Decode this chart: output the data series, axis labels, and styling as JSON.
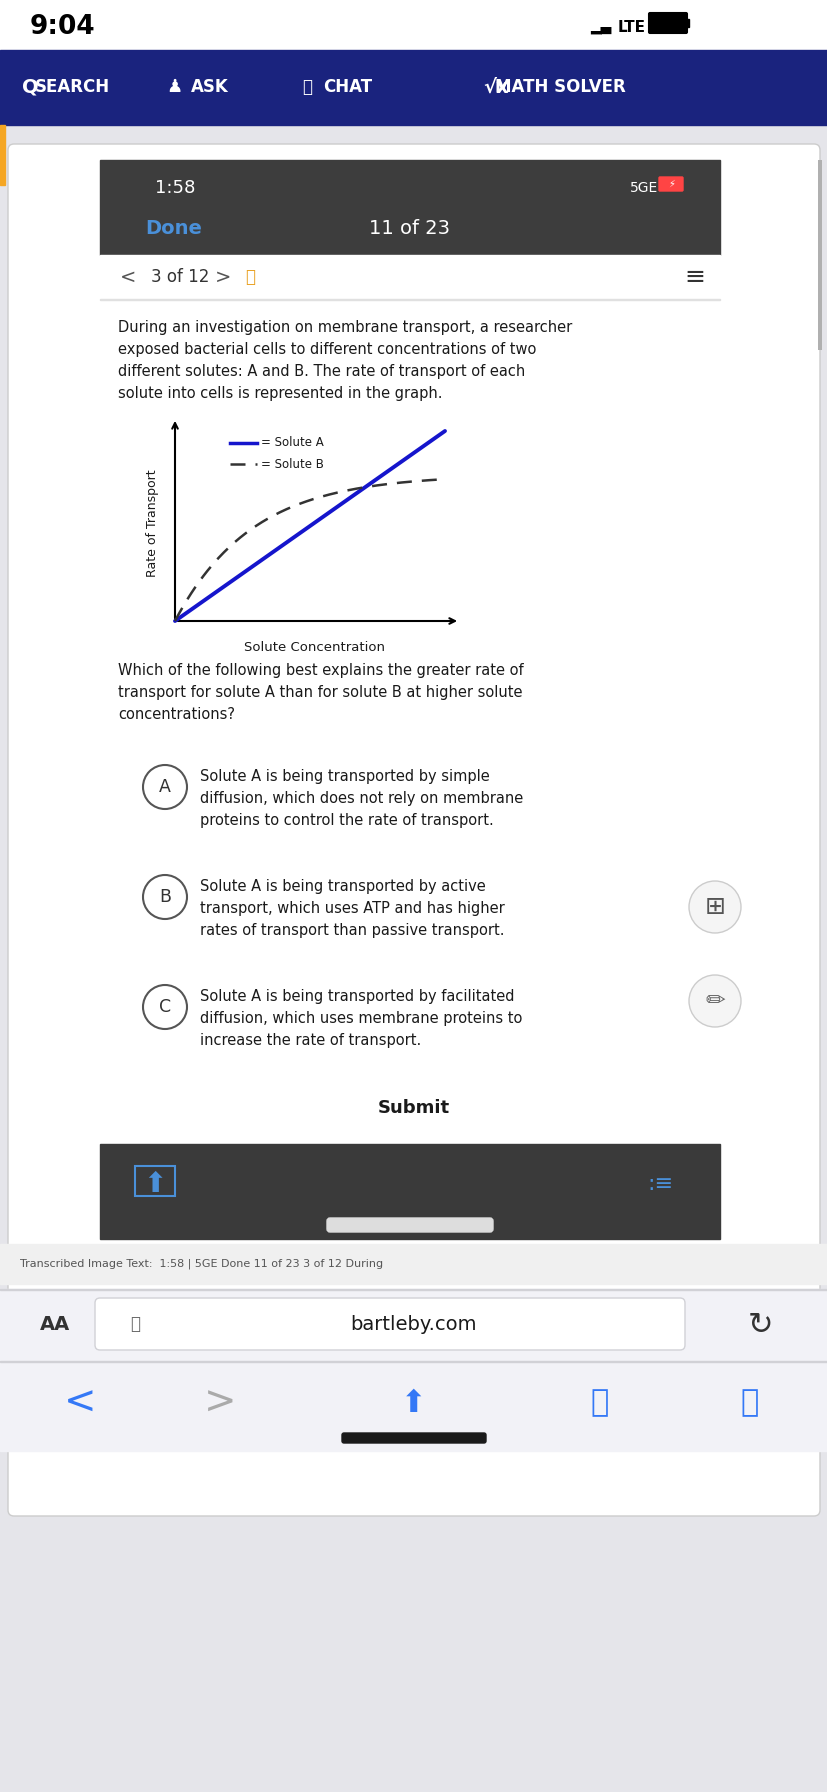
{
  "status_bar_time": "9:04",
  "nav_bar_bg": "#1a237e",
  "inner_status_bg": "#3d3d3d",
  "done_text": "Done",
  "done_color": "#4a90d9",
  "progress_text": "11 of 23",
  "nav2_text": "3 of 12",
  "question_text": "During an investigation on membrane transport, a researcher\nexposed bacterial cells to different concentrations of two\ndifferent solutes: A and B. The rate of transport of each\nsolute into cells is represented in the graph.",
  "graph_ylabel": "Rate of Transport",
  "graph_xlabel": "Solute Concentration",
  "solute_a_color": "#1515cc",
  "solute_b_color": "#333333",
  "legend_a": "= Solute A",
  "legend_b": "= Solute B",
  "question2_line1": "Which of the following best explains the greater rate of",
  "question2_line2": "transport for solute A than for solute B at higher solute",
  "question2_line3": "concentrations?",
  "option_a_letter": "A",
  "option_a_lines": [
    "Solute A is being transported by simple",
    "diffusion, which does not rely on membrane",
    "proteins to control the rate of transport."
  ],
  "option_b_letter": "B",
  "option_b_lines": [
    "Solute A is being transported by active",
    "transport, which uses ATP and has higher",
    "rates of transport than passive transport."
  ],
  "option_c_letter": "C",
  "option_c_lines": [
    "Solute A is being transported by facilitated",
    "diffusion, which uses membrane proteins to",
    "increase the rate of transport."
  ],
  "submit_text": "Submit",
  "bottom_url": "bartleby.com",
  "transcribed_text": "Transcribed Image Text:  1:58 | 5GE Done 11 of 23 3 of 12 During",
  "outer_bg": "#e5e5ea",
  "card_bg": "#ffffff",
  "bottom_bar_bg": "#3a3a3a",
  "browser_bar_bg": "#f2f2f7",
  "bottom_nav_bg": "#f2f2f7"
}
